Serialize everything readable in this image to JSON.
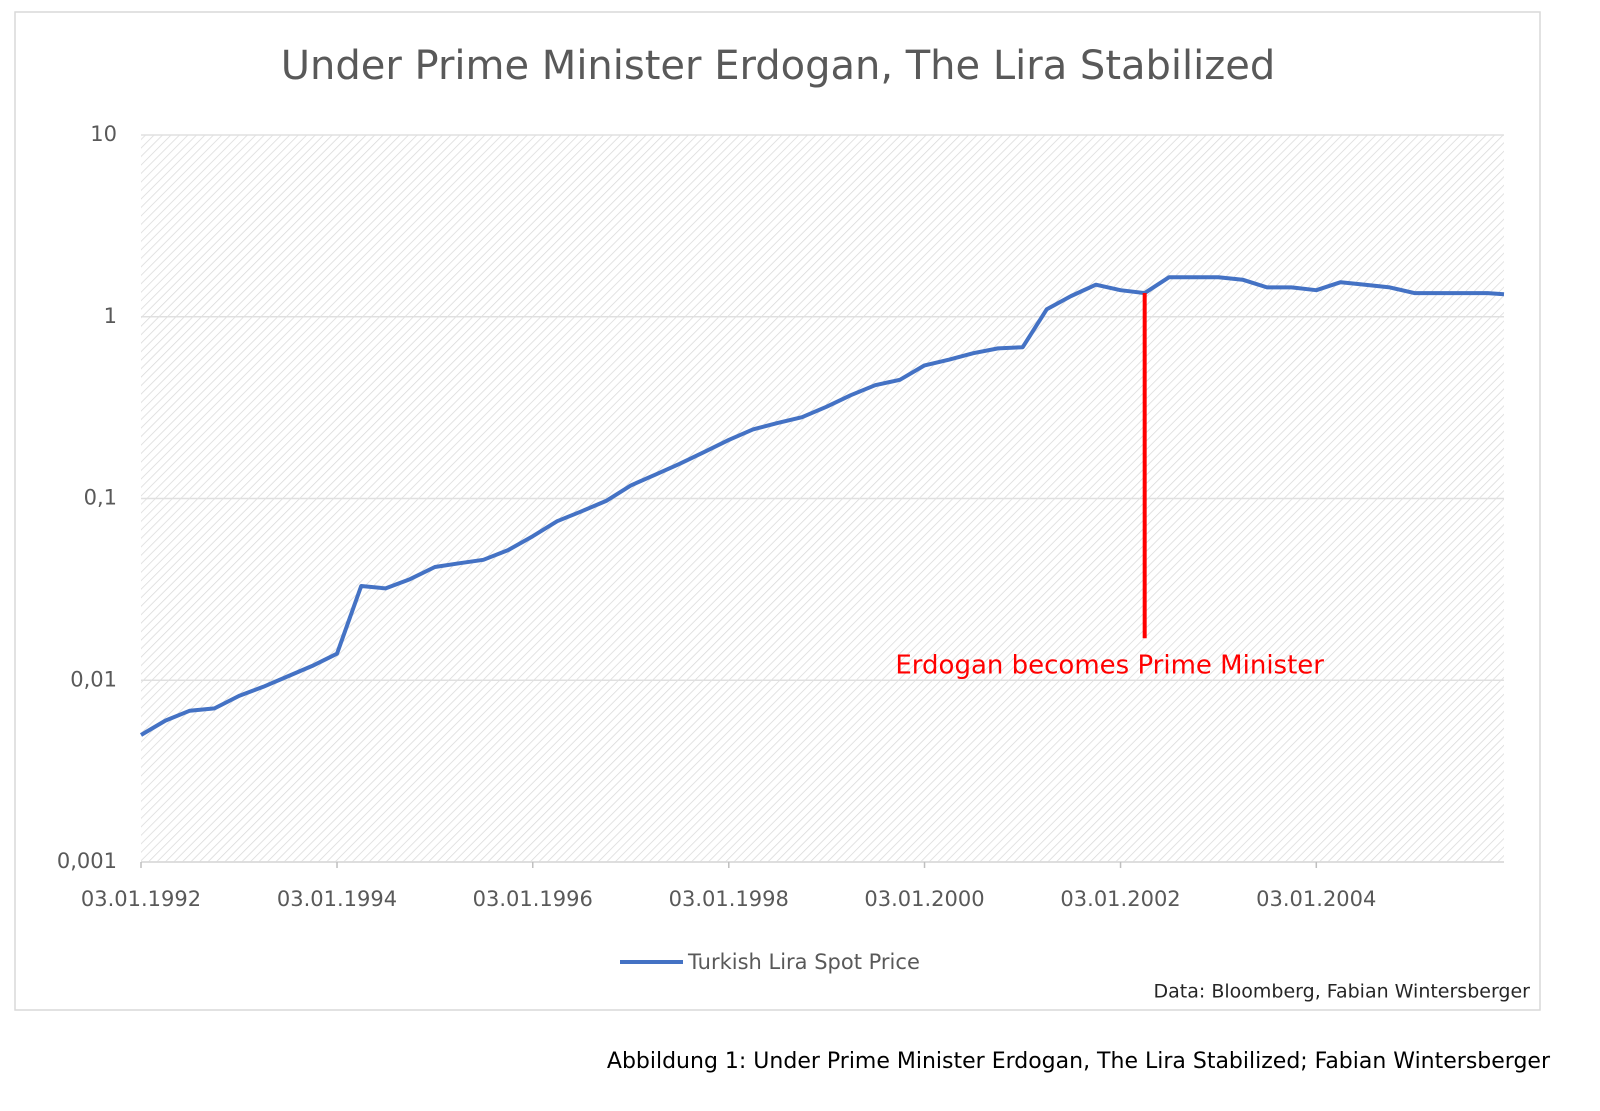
{
  "chart_data": {
    "type": "line",
    "title": "Under Prime Minister Erdogan, The Lira Stabilized",
    "x": [
      "03.01.1992",
      "03.04.1992",
      "03.07.1992",
      "03.10.1992",
      "03.01.1993",
      "03.04.1993",
      "03.07.1993",
      "03.10.1993",
      "03.01.1994",
      "03.04.1994",
      "03.07.1994",
      "03.10.1994",
      "03.01.1995",
      "03.04.1995",
      "03.07.1995",
      "03.10.1995",
      "03.01.1996",
      "03.04.1996",
      "03.07.1996",
      "03.10.1996",
      "03.01.1997",
      "03.04.1997",
      "03.07.1997",
      "03.10.1997",
      "03.01.1998",
      "03.04.1998",
      "03.07.1998",
      "03.10.1998",
      "03.01.1999",
      "03.04.1999",
      "03.07.1999",
      "03.10.1999",
      "03.01.2000",
      "03.04.2000",
      "03.07.2000",
      "03.10.2000",
      "03.01.2001",
      "03.04.2001",
      "03.07.2001",
      "03.10.2001",
      "03.01.2002",
      "03.04.2002",
      "03.07.2002",
      "03.10.2002",
      "03.01.2003",
      "03.04.2003",
      "03.07.2003",
      "03.10.2003",
      "03.01.2004",
      "03.04.2004",
      "03.07.2004",
      "03.10.2004",
      "03.01.2005",
      "03.04.2005",
      "03.07.2005",
      "03.10.2005",
      "03.12.2005"
    ],
    "series": [
      {
        "name": "Turkish Lira Spot Price",
        "color": "#4472c4",
        "values": [
          0.005,
          0.006,
          0.0068,
          0.007,
          0.0082,
          0.0092,
          0.0105,
          0.012,
          0.014,
          0.033,
          0.032,
          0.036,
          0.042,
          0.044,
          0.046,
          0.052,
          0.062,
          0.075,
          0.085,
          0.097,
          0.118,
          0.135,
          0.155,
          0.18,
          0.21,
          0.24,
          0.26,
          0.28,
          0.32,
          0.37,
          0.42,
          0.45,
          0.54,
          0.58,
          0.63,
          0.67,
          0.68,
          1.1,
          1.3,
          1.5,
          1.4,
          1.35,
          1.65,
          1.65,
          1.65,
          1.6,
          1.45,
          1.45,
          1.4,
          1.55,
          1.5,
          1.45,
          1.35,
          1.35,
          1.35,
          1.35,
          1.33
        ]
      }
    ],
    "xlim": [
      "03.01.1992",
      "03.12.2005"
    ],
    "xticks": [
      "03.01.1992",
      "03.01.1994",
      "03.01.1996",
      "03.01.1998",
      "03.01.2000",
      "03.01.2002",
      "03.01.2004"
    ],
    "ylim": [
      0.001,
      10
    ],
    "yticks": [
      {
        "value": 0.001,
        "label": "0,001"
      },
      {
        "value": 0.01,
        "label": "0,01"
      },
      {
        "value": 0.1,
        "label": "0,1"
      },
      {
        "value": 1,
        "label": "1"
      },
      10
    ],
    "log_scale": true,
    "grid": true,
    "legend": "bottom",
    "annotation": {
      "text": "Erdogan becomes Prime Minister",
      "x": "03.04.2002",
      "y": 1.35,
      "text_y": 0.015,
      "color": "#ff0000"
    },
    "source": "Data: Bloomberg, Fabian Wintersberger",
    "caption": "Abbildung 1: Under Prime Minister Erdogan, The Lira Stabilized; Fabian Wintersberger"
  }
}
